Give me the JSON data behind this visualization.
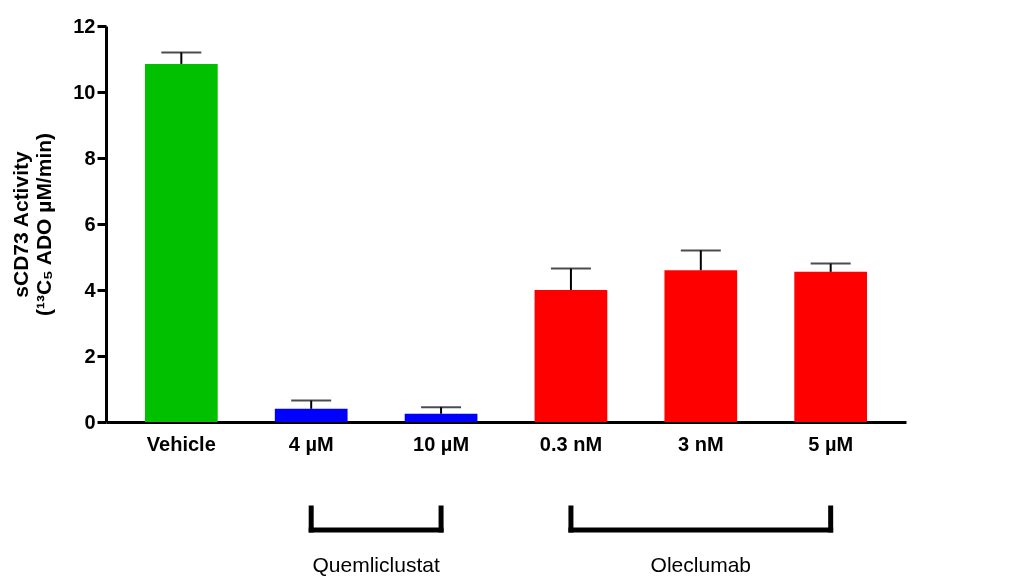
{
  "chart_data": {
    "type": "bar",
    "ylabel": "sCD73 Activity\n(¹³C₅ ADO µM/min)",
    "categories": [
      "Vehicle",
      "4 µM",
      "10 µM",
      "0.3 nM",
      "3 nM",
      "5 µM"
    ],
    "values": [
      10.85,
      0.4,
      0.25,
      4.0,
      4.6,
      4.55
    ],
    "colors": [
      "#00c000",
      "#0000ff",
      "#0000ff",
      "#ff0000",
      "#ff0000",
      "#ff0000"
    ],
    "errors": [
      [
        10.85,
        11.2
      ],
      [
        0.4,
        0.65
      ],
      [
        0.25,
        0.45
      ],
      [
        4.0,
        4.65
      ],
      [
        4.6,
        5.2
      ],
      [
        4.55,
        4.8
      ]
    ],
    "ylim": [
      0,
      12
    ],
    "yticks": [
      0,
      2,
      4,
      6,
      8,
      10,
      12
    ],
    "annotations": [
      "Quemliclustat",
      "Oleclumab"
    ]
  }
}
